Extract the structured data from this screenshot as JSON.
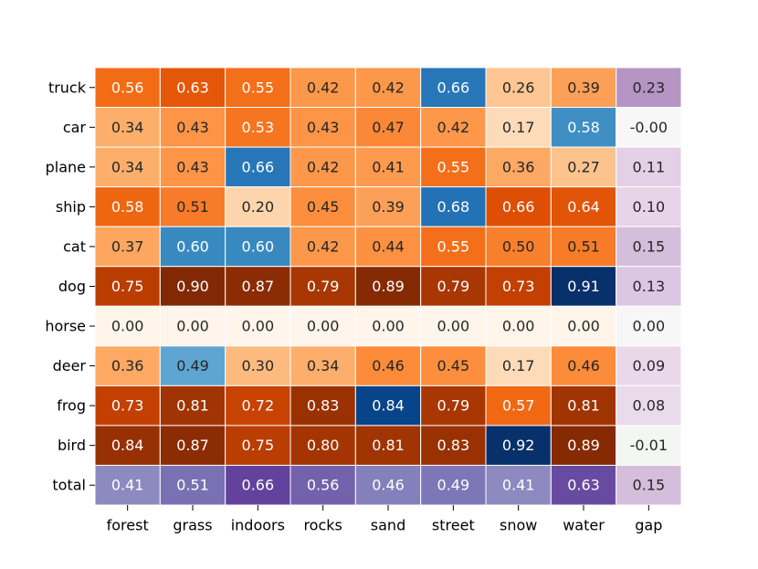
{
  "chart_data": {
    "type": "heatmap",
    "title": "",
    "xlabel": "",
    "ylabel": "",
    "x_categories": [
      "forest",
      "grass",
      "indoors",
      "rocks",
      "sand",
      "street",
      "snow",
      "water",
      "gap"
    ],
    "y_categories": [
      "truck",
      "car",
      "plane",
      "ship",
      "cat",
      "dog",
      "horse",
      "deer",
      "frog",
      "bird",
      "total"
    ],
    "values": [
      [
        0.56,
        0.63,
        0.55,
        0.42,
        0.42,
        0.66,
        0.26,
        0.39,
        0.23
      ],
      [
        0.34,
        0.43,
        0.53,
        0.43,
        0.47,
        0.42,
        0.17,
        0.58,
        -0.0
      ],
      [
        0.34,
        0.43,
        0.66,
        0.42,
        0.41,
        0.55,
        0.36,
        0.27,
        0.11
      ],
      [
        0.58,
        0.51,
        0.2,
        0.45,
        0.39,
        0.68,
        0.66,
        0.64,
        0.1
      ],
      [
        0.37,
        0.6,
        0.6,
        0.42,
        0.44,
        0.55,
        0.5,
        0.51,
        0.15
      ],
      [
        0.75,
        0.9,
        0.87,
        0.79,
        0.89,
        0.79,
        0.73,
        0.91,
        0.13
      ],
      [
        0.0,
        0.0,
        0.0,
        0.0,
        0.0,
        0.0,
        0.0,
        0.0,
        0.0
      ],
      [
        0.36,
        0.49,
        0.3,
        0.34,
        0.46,
        0.45,
        0.17,
        0.46,
        0.09
      ],
      [
        0.73,
        0.81,
        0.72,
        0.83,
        0.84,
        0.79,
        0.57,
        0.81,
        0.08
      ],
      [
        0.84,
        0.87,
        0.75,
        0.8,
        0.81,
        0.83,
        0.92,
        0.89,
        -0.01
      ],
      [
        0.41,
        0.51,
        0.66,
        0.56,
        0.46,
        0.49,
        0.41,
        0.63,
        0.15
      ]
    ],
    "labels": [
      [
        "0.56",
        "0.63",
        "0.55",
        "0.42",
        "0.42",
        "0.66",
        "0.26",
        "0.39",
        "0.23"
      ],
      [
        "0.34",
        "0.43",
        "0.53",
        "0.43",
        "0.47",
        "0.42",
        "0.17",
        "0.58",
        "-0.00"
      ],
      [
        "0.34",
        "0.43",
        "0.66",
        "0.42",
        "0.41",
        "0.55",
        "0.36",
        "0.27",
        "0.11"
      ],
      [
        "0.58",
        "0.51",
        "0.20",
        "0.45",
        "0.39",
        "0.68",
        "0.66",
        "0.64",
        "0.10"
      ],
      [
        "0.37",
        "0.60",
        "0.60",
        "0.42",
        "0.44",
        "0.55",
        "0.50",
        "0.51",
        "0.15"
      ],
      [
        "0.75",
        "0.90",
        "0.87",
        "0.79",
        "0.89",
        "0.79",
        "0.73",
        "0.91",
        "0.13"
      ],
      [
        "0.00",
        "0.00",
        "0.00",
        "0.00",
        "0.00",
        "0.00",
        "0.00",
        "0.00",
        "0.00"
      ],
      [
        "0.36",
        "0.49",
        "0.30",
        "0.34",
        "0.46",
        "0.45",
        "0.17",
        "0.46",
        "0.09"
      ],
      [
        "0.73",
        "0.81",
        "0.72",
        "0.83",
        "0.84",
        "0.79",
        "0.57",
        "0.81",
        "0.08"
      ],
      [
        "0.84",
        "0.87",
        "0.75",
        "0.80",
        "0.81",
        "0.83",
        "0.92",
        "0.89",
        "-0.01"
      ],
      [
        "0.41",
        "0.51",
        "0.66",
        "0.56",
        "0.46",
        "0.49",
        "0.41",
        "0.63",
        "0.15"
      ]
    ],
    "value_range": [
      0,
      1
    ],
    "colormaps": [
      "Blues",
      "Oranges",
      "Purples",
      "PRGn"
    ],
    "grid": true,
    "legend": "none",
    "cell_border_color": "#ffffff"
  }
}
